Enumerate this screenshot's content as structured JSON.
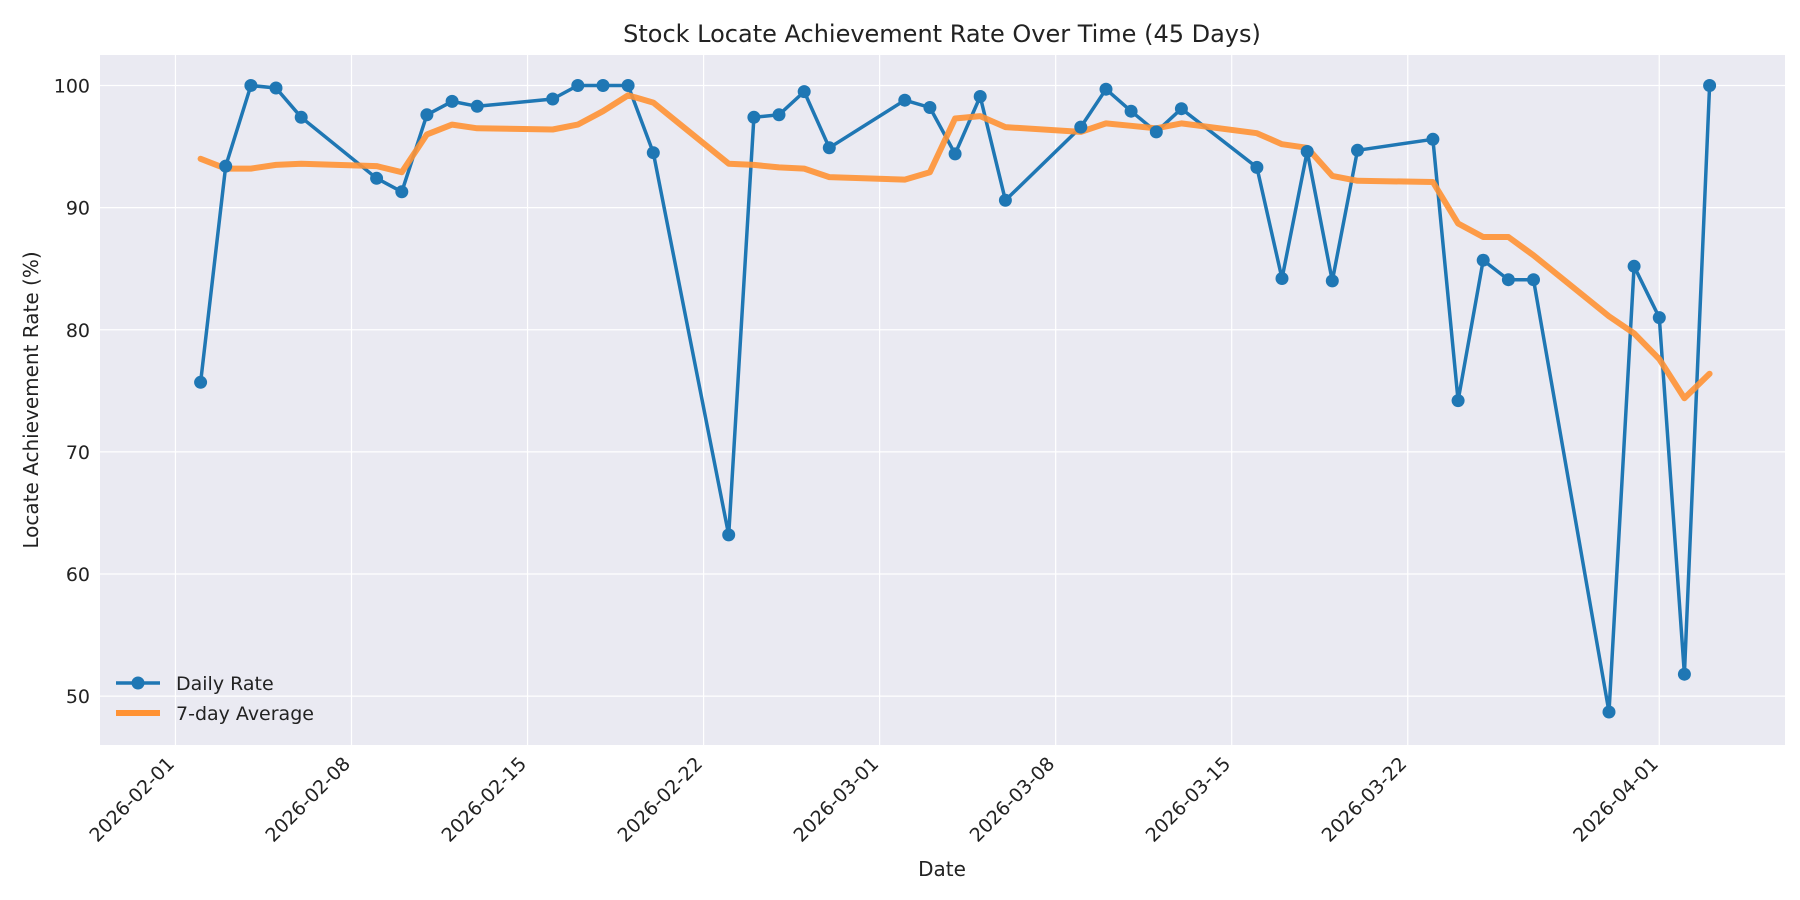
{
  "chart_data": {
    "type": "line",
    "title": "Stock Locate Achievement Rate Over Time (45 Days)",
    "xlabel": "Date",
    "ylabel": "Locate Achievement Rate (%)",
    "x_range": [
      "2026-01-29",
      "2026-04-06"
    ],
    "ylim": [
      46,
      102.5
    ],
    "y_ticks": [
      50,
      60,
      70,
      80,
      90,
      100
    ],
    "x_ticks": [
      "2026-02-01",
      "2026-02-08",
      "2026-02-15",
      "2026-02-22",
      "2026-03-01",
      "2026-03-08",
      "2026-03-15",
      "2026-03-22",
      "2026-04-01"
    ],
    "grid": true,
    "legend": {
      "position": "lower-left"
    },
    "series": [
      {
        "name": "Daily Rate",
        "color": "#1f77b4",
        "marker": "circle",
        "points": [
          [
            "2026-02-02",
            75.7
          ],
          [
            "2026-02-03",
            93.4
          ],
          [
            "2026-02-04",
            100.0
          ],
          [
            "2026-02-05",
            99.8
          ],
          [
            "2026-02-06",
            97.4
          ],
          [
            "2026-02-09",
            92.4
          ],
          [
            "2026-02-10",
            91.3
          ],
          [
            "2026-02-11",
            97.6
          ],
          [
            "2026-02-12",
            98.7
          ],
          [
            "2026-02-13",
            98.3
          ],
          [
            "2026-02-16",
            98.9
          ],
          [
            "2026-02-17",
            100.0
          ],
          [
            "2026-02-18",
            100.0
          ],
          [
            "2026-02-19",
            100.0
          ],
          [
            "2026-02-20",
            94.5
          ],
          [
            "2026-02-23",
            63.2
          ],
          [
            "2026-02-24",
            97.4
          ],
          [
            "2026-02-25",
            97.6
          ],
          [
            "2026-02-26",
            99.5
          ],
          [
            "2026-02-27",
            94.9
          ],
          [
            "2026-03-02",
            98.8
          ],
          [
            "2026-03-03",
            98.2
          ],
          [
            "2026-03-04",
            94.4
          ],
          [
            "2026-03-05",
            99.1
          ],
          [
            "2026-03-06",
            90.6
          ],
          [
            "2026-03-09",
            96.6
          ],
          [
            "2026-03-10",
            99.7
          ],
          [
            "2026-03-11",
            97.9
          ],
          [
            "2026-03-12",
            96.2
          ],
          [
            "2026-03-13",
            98.1
          ],
          [
            "2026-03-16",
            93.3
          ],
          [
            "2026-03-17",
            84.2
          ],
          [
            "2026-03-18",
            94.6
          ],
          [
            "2026-03-19",
            84.0
          ],
          [
            "2026-03-20",
            94.7
          ],
          [
            "2026-03-23",
            95.6
          ],
          [
            "2026-03-24",
            74.2
          ],
          [
            "2026-03-25",
            85.7
          ],
          [
            "2026-03-26",
            84.1
          ],
          [
            "2026-03-27",
            84.1
          ],
          [
            "2026-03-30",
            48.7
          ],
          [
            "2026-03-31",
            85.2
          ],
          [
            "2026-04-01",
            81.0
          ],
          [
            "2026-04-02",
            51.8
          ],
          [
            "2026-04-03",
            100.0
          ]
        ]
      },
      {
        "name": "7-day Average",
        "color": "#ff9234",
        "marker": "none",
        "points": [
          [
            "2026-02-02",
            94.0
          ],
          [
            "2026-02-03",
            93.2
          ],
          [
            "2026-02-04",
            93.2
          ],
          [
            "2026-02-05",
            93.5
          ],
          [
            "2026-02-06",
            93.6
          ],
          [
            "2026-02-09",
            93.4
          ],
          [
            "2026-02-10",
            92.9
          ],
          [
            "2026-02-11",
            96.0
          ],
          [
            "2026-02-12",
            96.8
          ],
          [
            "2026-02-13",
            96.5
          ],
          [
            "2026-02-16",
            96.4
          ],
          [
            "2026-02-17",
            96.8
          ],
          [
            "2026-02-18",
            97.9
          ],
          [
            "2026-02-19",
            99.2
          ],
          [
            "2026-02-20",
            98.6
          ],
          [
            "2026-02-23",
            93.6
          ],
          [
            "2026-02-24",
            93.5
          ],
          [
            "2026-02-25",
            93.3
          ],
          [
            "2026-02-26",
            93.2
          ],
          [
            "2026-02-27",
            92.5
          ],
          [
            "2026-03-02",
            92.3
          ],
          [
            "2026-03-03",
            92.9
          ],
          [
            "2026-03-04",
            97.3
          ],
          [
            "2026-03-05",
            97.5
          ],
          [
            "2026-03-06",
            96.6
          ],
          [
            "2026-03-09",
            96.2
          ],
          [
            "2026-03-10",
            96.9
          ],
          [
            "2026-03-11",
            96.7
          ],
          [
            "2026-03-12",
            96.5
          ],
          [
            "2026-03-13",
            96.9
          ],
          [
            "2026-03-16",
            96.1
          ],
          [
            "2026-03-17",
            95.2
          ],
          [
            "2026-03-18",
            94.9
          ],
          [
            "2026-03-19",
            92.6
          ],
          [
            "2026-03-20",
            92.2
          ],
          [
            "2026-03-23",
            92.1
          ],
          [
            "2026-03-24",
            88.7
          ],
          [
            "2026-03-25",
            87.6
          ],
          [
            "2026-03-26",
            87.6
          ],
          [
            "2026-03-27",
            86.1
          ],
          [
            "2026-03-30",
            81.1
          ],
          [
            "2026-03-31",
            79.7
          ],
          [
            "2026-04-01",
            77.6
          ],
          [
            "2026-04-02",
            74.4
          ],
          [
            "2026-04-03",
            76.4
          ]
        ]
      }
    ]
  }
}
